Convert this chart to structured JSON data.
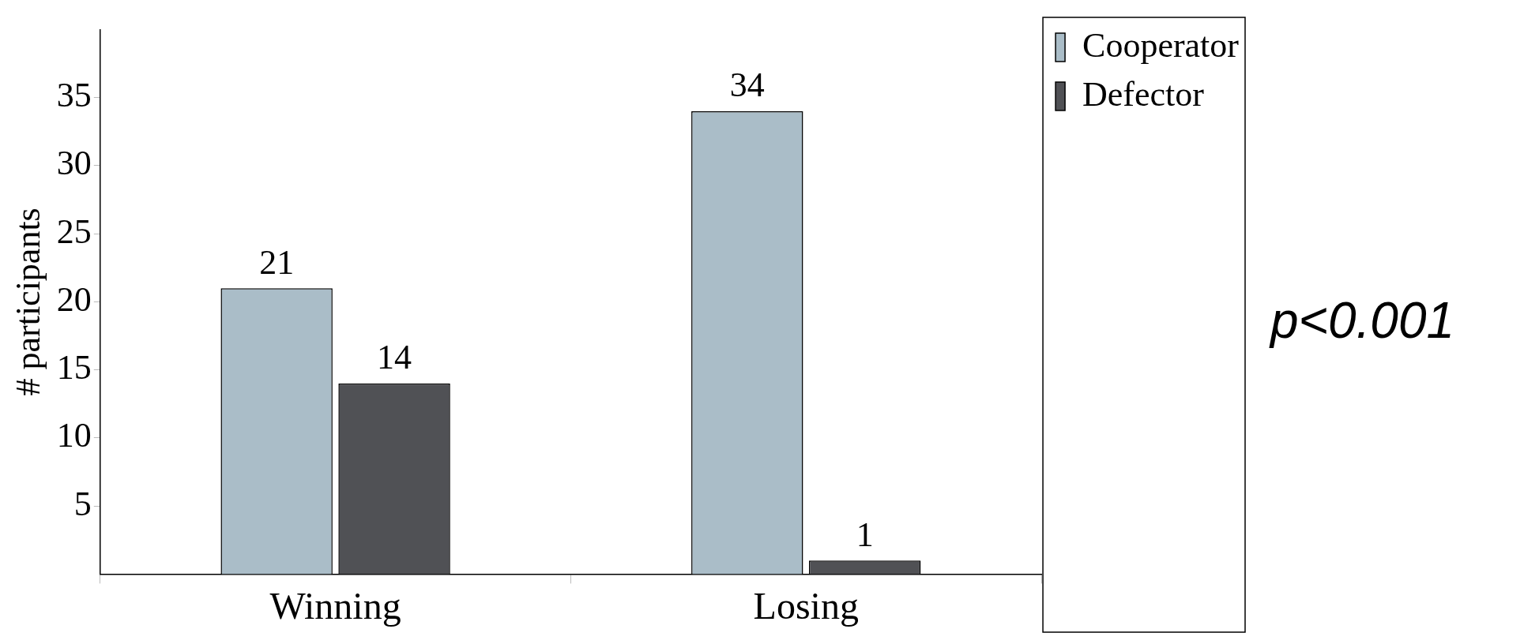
{
  "chart_data": {
    "type": "bar",
    "ylabel": "# participants",
    "categories": [
      "Winning",
      "Losing"
    ],
    "series": [
      {
        "name": "Cooperator",
        "color": "#aabdc8",
        "values": [
          21,
          34
        ]
      },
      {
        "name": "Defector",
        "color": "#505155",
        "values": [
          14,
          1
        ]
      }
    ],
    "ylim": [
      0,
      40
    ],
    "yticks": [
      5,
      10,
      15,
      20,
      25,
      30,
      35
    ],
    "grid": false,
    "legend": "top right",
    "data_labels": true,
    "annotations": [
      "p<0.001"
    ]
  }
}
